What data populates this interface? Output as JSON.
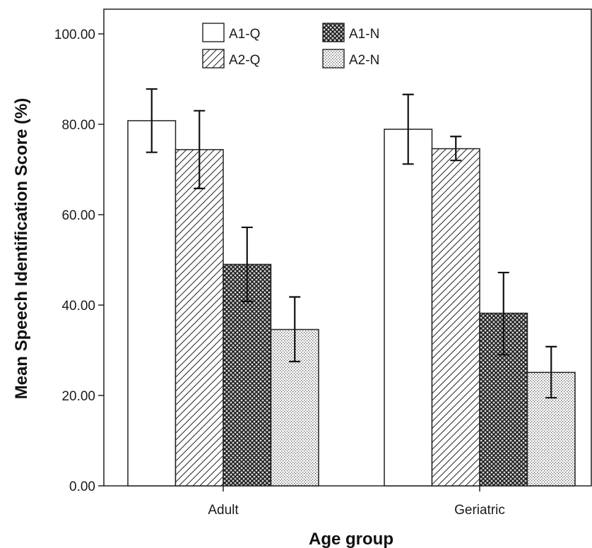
{
  "chart_data": {
    "type": "bar",
    "title": "",
    "xlabel": "Age group",
    "ylabel": "Mean Speech Identification Score (%)",
    "ylim": [
      0,
      100
    ],
    "yticks": [
      "0.00",
      "20.00",
      "40.00",
      "60.00",
      "80.00",
      "100.00"
    ],
    "categories": [
      "Adult",
      "Geriatric"
    ],
    "series": [
      {
        "name": "A1-Q",
        "values": [
          80.8,
          78.9
        ],
        "err_low": [
          73.8,
          71.2
        ],
        "err_high": [
          87.8,
          86.6
        ],
        "pattern": "white"
      },
      {
        "name": "A2-Q",
        "values": [
          74.4,
          74.6
        ],
        "err_low": [
          65.8,
          72.0
        ],
        "err_high": [
          83.0,
          77.3
        ],
        "pattern": "diagonal"
      },
      {
        "name": "A1-N",
        "values": [
          49.0,
          38.2
        ],
        "err_low": [
          40.8,
          29.0
        ],
        "err_high": [
          57.2,
          47.2
        ],
        "pattern": "crosshatch"
      },
      {
        "name": "A2-N",
        "values": [
          34.6,
          25.1
        ],
        "err_low": [
          27.5,
          19.5
        ],
        "err_high": [
          41.8,
          30.8
        ],
        "pattern": "dots"
      }
    ],
    "grid": false,
    "legend_position": "top"
  }
}
